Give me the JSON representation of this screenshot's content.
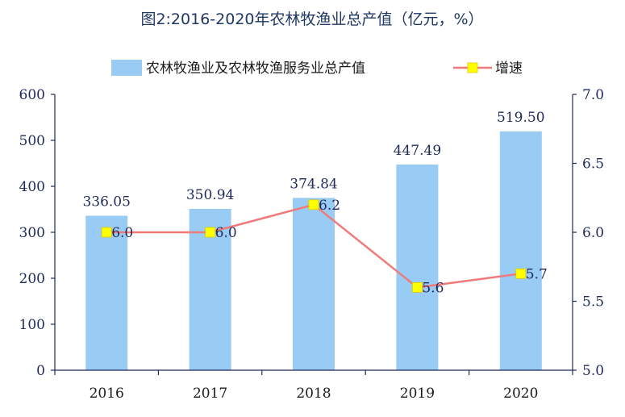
{
  "chart_data": {
    "type": "bar",
    "title": "图2:2016-2020年农林牧渔业总产值（亿元，%）",
    "categories": [
      "2016",
      "2017",
      "2018",
      "2019",
      "2020"
    ],
    "series": [
      {
        "name": "农林牧渔业及农林牧渔服务业总产值",
        "type": "bar",
        "axis": "left",
        "values": [
          336.05,
          350.94,
          374.84,
          447.49,
          519.5
        ],
        "labels": [
          "336.05",
          "350.94",
          "374.84",
          "447.49",
          "519.50"
        ],
        "color": "#99ccf5"
      },
      {
        "name": "增速",
        "type": "line",
        "axis": "right",
        "values": [
          6.0,
          6.0,
          6.2,
          5.6,
          5.7
        ],
        "labels": [
          "6.0",
          "6.0",
          "6.2",
          "5.6",
          "5.7"
        ],
        "color": "#f07a7a",
        "marker_color": "#ffff00"
      }
    ],
    "y_left": {
      "min": 0,
      "max": 600,
      "ticks": [
        "0",
        "100",
        "200",
        "300",
        "400",
        "500",
        "600"
      ]
    },
    "y_right": {
      "min": 5.0,
      "max": 7.0,
      "ticks": [
        "5.0",
        "5.5",
        "6.0",
        "6.5",
        "7.0"
      ]
    },
    "legend_position": "top",
    "grid": false,
    "axis_color": "#1f2a5a"
  }
}
